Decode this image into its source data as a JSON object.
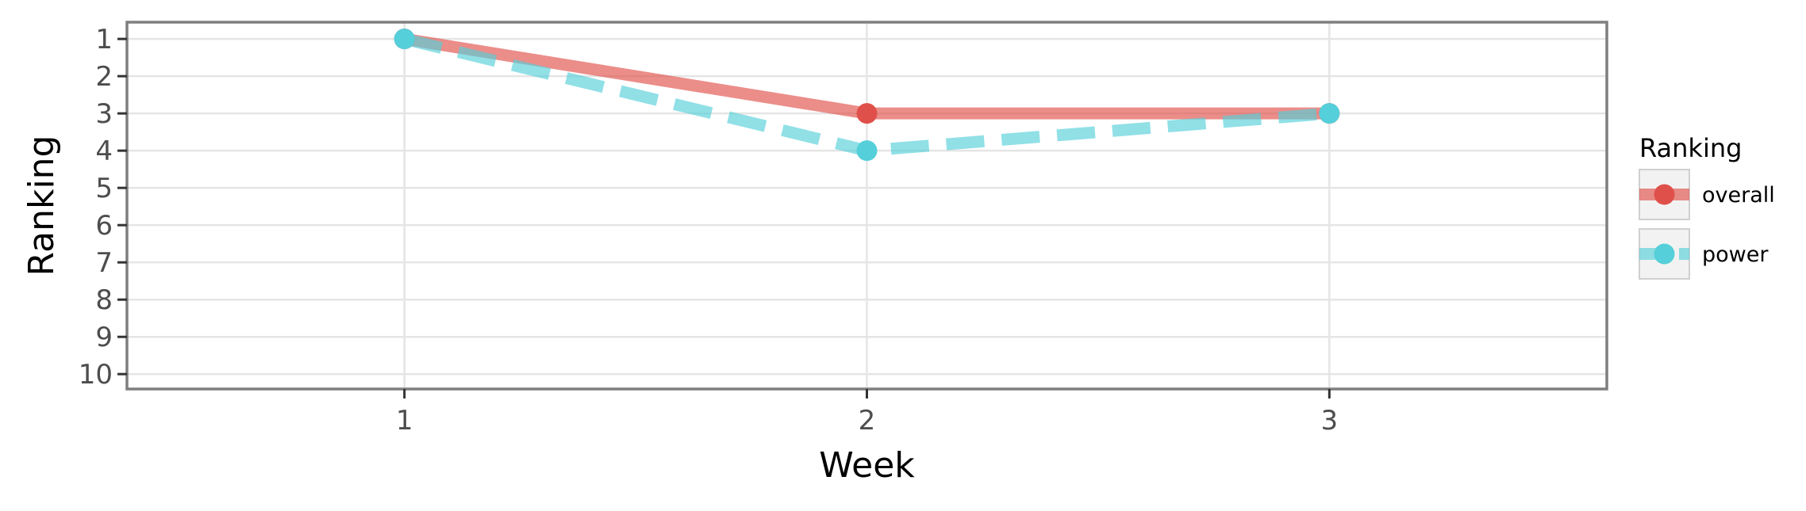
{
  "chart_data": {
    "type": "line",
    "title": "",
    "xlabel": "Week",
    "ylabel": "Ranking",
    "x": [
      1,
      2,
      3
    ],
    "x_ticks": [
      "1",
      "2",
      "3"
    ],
    "xlim": [
      0.4,
      3.6
    ],
    "y_ticks": [
      "1",
      "2",
      "3",
      "4",
      "5",
      "6",
      "7",
      "8",
      "9",
      "10"
    ],
    "ylim": [
      10.4,
      0.55
    ],
    "y_reversed": true,
    "grid": true,
    "legend": {
      "title": "Ranking",
      "placement": "right"
    },
    "series": [
      {
        "name": "overall",
        "values": [
          1,
          3,
          3
        ],
        "color": "#e0504a",
        "line_style": "solid"
      },
      {
        "name": "power",
        "values": [
          1,
          4,
          3
        ],
        "color": "#55cfd9",
        "line_style": "dashed"
      }
    ]
  }
}
